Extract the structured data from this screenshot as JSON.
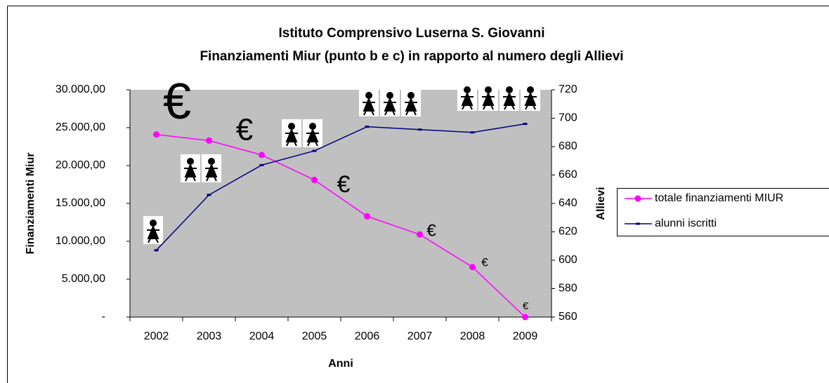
{
  "chart_data": {
    "type": "line",
    "title": "Istituto Comprensivo Luserna S. Giovanni",
    "subtitle": "Finanziamenti Miur (punto b e c) in rapporto al numero degli Allievi",
    "x_label": "Anni",
    "y_label": "Finanziamenti Miur",
    "y2_label": "Allievi",
    "categories": [
      "2002",
      "2003",
      "2004",
      "2005",
      "2006",
      "2007",
      "2008",
      "2009"
    ],
    "series": [
      {
        "name": "totale finanziamenti MIUR",
        "color": "#ff00ff",
        "values": [
          24100,
          23300,
          21400,
          18100,
          13300,
          10900,
          6600,
          0
        ]
      },
      {
        "name": "alunni iscritti",
        "color": "#000080",
        "axis": "y2",
        "values": [
          607,
          646,
          667,
          677,
          694,
          692,
          690,
          696
        ]
      }
    ],
    "ylim": [
      0,
      30000
    ],
    "yticks": [
      {
        "value": 0,
        "label": "-"
      },
      {
        "value": 5000,
        "label": "5.000,00"
      },
      {
        "value": 10000,
        "label": "10.000,00"
      },
      {
        "value": 15000,
        "label": "15.000,00"
      },
      {
        "value": 20000,
        "label": "20.000,00"
      },
      {
        "value": 25000,
        "label": "25.000,00"
      },
      {
        "value": 30000,
        "label": "30.000,00"
      }
    ],
    "y2lim": [
      560,
      720
    ],
    "y2ticks": [
      560,
      580,
      600,
      620,
      640,
      660,
      680,
      700,
      720
    ],
    "annotations": [
      "€",
      "€",
      "€",
      "€",
      "€",
      "€"
    ],
    "grid": false,
    "legend": "right",
    "plot_background": "#c0c0c0"
  }
}
